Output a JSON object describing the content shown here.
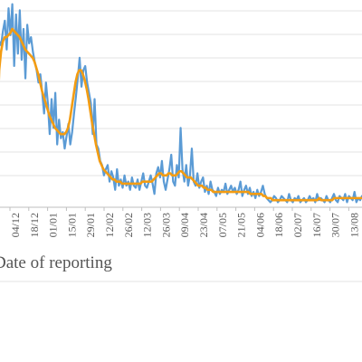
{
  "chart_data": {
    "type": "line",
    "title": "",
    "xlabel": "Date of reporting",
    "ylabel": "",
    "x_tick_labels": [
      "04/12",
      "18/12",
      "01/01",
      "15/01",
      "29/01",
      "12/02",
      "26/02",
      "12/03",
      "26/03",
      "09/04",
      "23/04",
      "07/05",
      "21/05",
      "04/06",
      "18/06",
      "02/07",
      "16/07",
      "30/07",
      "13/08"
    ],
    "grid": true,
    "legend": "none",
    "colors": {
      "daily": "#5b9bd5",
      "moving_average": "#f39c12",
      "grid": "#e3e3e3",
      "axis": "#bfbfbf",
      "text": "#555555"
    },
    "series": [
      {
        "key": "daily",
        "values": [
          0.05,
          0.72,
          0.8,
          0.78,
          0.85,
          0.9,
          0.76,
          0.96,
          0.83,
          0.98,
          0.68,
          0.93,
          0.74,
          0.95,
          0.71,
          0.86,
          0.62,
          0.88,
          0.79,
          0.82,
          0.75,
          0.7,
          0.66,
          0.6,
          0.64,
          0.55,
          0.45,
          0.6,
          0.5,
          0.35,
          0.52,
          0.38,
          0.55,
          0.3,
          0.42,
          0.33,
          0.36,
          0.28,
          0.34,
          0.4,
          0.3,
          0.36,
          0.45,
          0.53,
          0.62,
          0.72,
          0.58,
          0.66,
          0.68,
          0.6,
          0.55,
          0.5,
          0.35,
          0.52,
          0.3,
          0.28,
          0.22,
          0.2,
          0.15,
          0.18,
          0.2,
          0.12,
          0.17,
          0.14,
          0.08,
          0.18,
          0.1,
          0.13,
          0.09,
          0.15,
          0.1,
          0.12,
          0.08,
          0.14,
          0.1,
          0.09,
          0.13,
          0.08,
          0.12,
          0.16,
          0.1,
          0.09,
          0.12,
          0.15,
          0.11,
          0.06,
          0.16,
          0.19,
          0.14,
          0.22,
          0.12,
          0.08,
          0.13,
          0.18,
          0.25,
          0.12,
          0.1,
          0.2,
          0.14,
          0.38,
          0.18,
          0.12,
          0.2,
          0.1,
          0.15,
          0.28,
          0.12,
          0.1,
          0.16,
          0.09,
          0.12,
          0.14,
          0.07,
          0.1,
          0.06,
          0.12,
          0.08,
          0.07,
          0.05,
          0.09,
          0.06,
          0.08,
          0.07,
          0.11,
          0.06,
          0.08,
          0.1,
          0.07,
          0.09,
          0.06,
          0.08,
          0.12,
          0.05,
          0.08,
          0.1,
          0.06,
          0.09,
          0.05,
          0.07,
          0.04,
          0.08,
          0.05,
          0.07,
          0.1,
          0.06,
          0.04,
          0.03,
          0.02,
          0.03,
          0.05,
          0.04,
          0.02,
          0.03,
          0.05,
          0.04,
          0.03,
          0.02,
          0.06,
          0.03,
          0.02,
          0.04,
          0.03,
          0.05,
          0.02,
          0.03,
          0.04,
          0.02,
          0.03,
          0.05,
          0.03,
          0.04,
          0.02,
          0.06,
          0.03,
          0.04,
          0.03,
          0.02,
          0.05,
          0.03,
          0.02,
          0.04,
          0.06,
          0.03,
          0.02,
          0.05,
          0.04,
          0.03,
          0.06,
          0.02,
          0.05,
          0.04,
          0.03,
          0.07,
          0.02,
          0.04,
          0.03,
          0.05
        ]
      },
      {
        "key": "moving_average",
        "values": [
          0.1,
          0.4,
          0.66,
          0.75,
          0.8,
          0.82,
          0.82,
          0.83,
          0.84,
          0.86,
          0.85,
          0.84,
          0.83,
          0.82,
          0.8,
          0.78,
          0.76,
          0.75,
          0.74,
          0.73,
          0.72,
          0.7,
          0.67,
          0.64,
          0.6,
          0.56,
          0.53,
          0.5,
          0.47,
          0.44,
          0.42,
          0.4,
          0.38,
          0.37,
          0.36,
          0.35,
          0.35,
          0.35,
          0.36,
          0.38,
          0.42,
          0.48,
          0.54,
          0.6,
          0.64,
          0.66,
          0.66,
          0.64,
          0.61,
          0.57,
          0.52,
          0.46,
          0.4,
          0.35,
          0.3,
          0.26,
          0.22,
          0.2,
          0.18,
          0.17,
          0.16,
          0.15,
          0.14,
          0.13,
          0.13,
          0.12,
          0.12,
          0.12,
          0.11,
          0.11,
          0.11,
          0.11,
          0.11,
          0.11,
          0.11,
          0.11,
          0.11,
          0.11,
          0.11,
          0.12,
          0.12,
          0.12,
          0.12,
          0.12,
          0.12,
          0.13,
          0.14,
          0.15,
          0.16,
          0.16,
          0.15,
          0.15,
          0.15,
          0.16,
          0.16,
          0.15,
          0.15,
          0.15,
          0.16,
          0.17,
          0.17,
          0.16,
          0.15,
          0.14,
          0.14,
          0.14,
          0.13,
          0.12,
          0.11,
          0.1,
          0.1,
          0.1,
          0.09,
          0.09,
          0.08,
          0.08,
          0.08,
          0.07,
          0.07,
          0.07,
          0.07,
          0.07,
          0.07,
          0.07,
          0.07,
          0.07,
          0.07,
          0.07,
          0.07,
          0.07,
          0.07,
          0.07,
          0.07,
          0.07,
          0.07,
          0.07,
          0.07,
          0.06,
          0.06,
          0.06,
          0.06,
          0.06,
          0.06,
          0.06,
          0.05,
          0.05,
          0.04,
          0.04,
          0.04,
          0.03,
          0.03,
          0.03,
          0.03,
          0.03,
          0.03,
          0.03,
          0.03,
          0.03,
          0.03,
          0.03,
          0.03,
          0.03,
          0.03,
          0.03,
          0.03,
          0.03,
          0.03,
          0.03,
          0.03,
          0.03,
          0.03,
          0.03,
          0.03,
          0.03,
          0.04,
          0.03,
          0.03,
          0.03,
          0.03,
          0.03,
          0.03,
          0.03,
          0.04,
          0.04,
          0.04,
          0.04,
          0.04,
          0.04,
          0.04,
          0.04,
          0.04,
          0.04,
          0.04,
          0.04,
          0.04,
          0.04,
          0.04,
          0.04
        ]
      }
    ]
  }
}
